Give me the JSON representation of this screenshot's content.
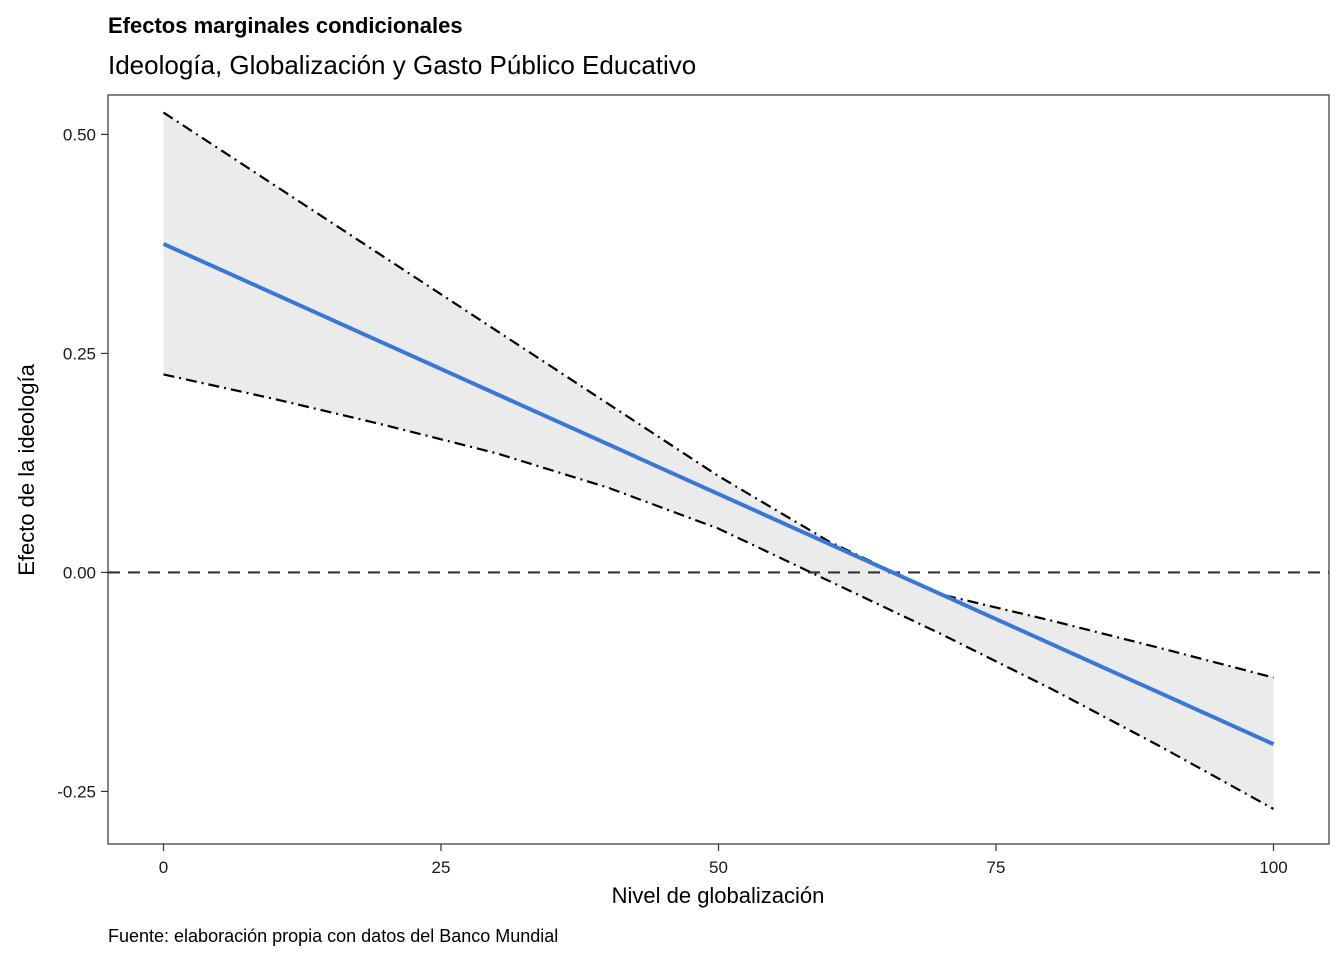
{
  "chart_data": {
    "type": "line",
    "title": "Efectos marginales condicionales",
    "subtitle": "Ideología, Globalización y Gasto Público Educativo",
    "xlabel": "Nivel de globalización",
    "ylabel": "Efecto de la ideología",
    "caption": "Fuente: elaboración propia con datos del Banco Mundial",
    "xlim": [
      -5,
      105
    ],
    "ylim": [
      -0.31,
      0.545
    ],
    "x_ticks": [
      0,
      25,
      50,
      75,
      100
    ],
    "x_tick_labels": [
      "0",
      "25",
      "50",
      "75",
      "100"
    ],
    "y_ticks": [
      -0.25,
      0,
      0.25,
      0.5
    ],
    "y_tick_labels": [
      "-0.25",
      "0.00",
      "0.25",
      "0.50"
    ],
    "grid": false,
    "reference_line": {
      "y": 0,
      "style": "dashed",
      "color": "#333333"
    },
    "series": [
      {
        "role": "estimate",
        "color": "#3a78d8",
        "style": "solid",
        "x": [
          0,
          100
        ],
        "y": [
          0.375,
          -0.196
        ]
      },
      {
        "role": "upper-bound",
        "color": "#000000",
        "style": "dot-dash",
        "x": [
          0,
          10,
          20,
          30,
          40,
          50,
          60,
          70,
          80,
          90,
          100
        ],
        "y": [
          0.525,
          0.442,
          0.359,
          0.276,
          0.193,
          0.11,
          0.035,
          -0.025,
          -0.055,
          -0.087,
          -0.12
        ]
      },
      {
        "role": "lower-bound",
        "color": "#000000",
        "style": "dot-dash",
        "x": [
          0,
          10,
          20,
          30,
          40,
          50,
          60,
          70,
          80,
          90,
          100
        ],
        "y": [
          0.226,
          0.198,
          0.168,
          0.136,
          0.097,
          0.05,
          -0.01,
          -0.07,
          -0.133,
          -0.2,
          -0.27
        ]
      }
    ],
    "band": {
      "fill": "#ebebeb",
      "between": [
        "upper-bound",
        "lower-bound"
      ]
    }
  }
}
